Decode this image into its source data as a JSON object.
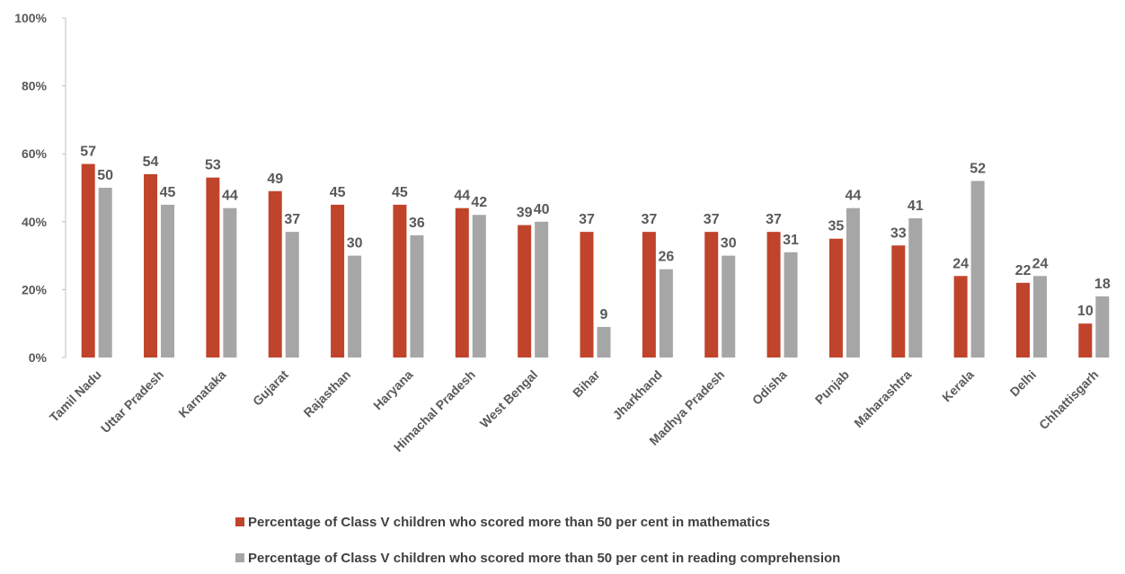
{
  "chart_data": {
    "type": "bar",
    "categories": [
      "Tamil Nadu",
      "Uttar Pradesh",
      "Karnataka",
      "Gujarat",
      "Rajasthan",
      "Haryana",
      "Himachal Pradesh",
      "West Bengal",
      "Bihar",
      "Jharkhand",
      "Madhya Pradesh",
      "Odisha",
      "Punjab",
      "Maharashtra",
      "Kerala",
      "Delhi",
      "Chhattisgarh"
    ],
    "series": [
      {
        "name": "Percentage of Class V children who scored more than 50 per cent in mathematics",
        "color": "#c0442b",
        "values": [
          57,
          54,
          53,
          49,
          45,
          45,
          44,
          39,
          37,
          37,
          37,
          37,
          35,
          33,
          24,
          22,
          10
        ]
      },
      {
        "name": "Percentage of Class V children who scored more than 50 per cent in reading comprehension",
        "color": "#a6a6a6",
        "values": [
          50,
          45,
          44,
          37,
          30,
          36,
          42,
          40,
          9,
          26,
          30,
          31,
          44,
          41,
          52,
          24,
          18
        ]
      }
    ],
    "ylim": [
      0,
      100
    ],
    "yticks": [
      {
        "value": 0,
        "label": "0%"
      },
      {
        "value": 20,
        "label": "20%"
      },
      {
        "value": 40,
        "label": "40%"
      },
      {
        "value": 60,
        "label": "60%"
      },
      {
        "value": 80,
        "label": "80%"
      },
      {
        "value": 100,
        "label": "100%"
      }
    ],
    "legend": "bottom"
  }
}
